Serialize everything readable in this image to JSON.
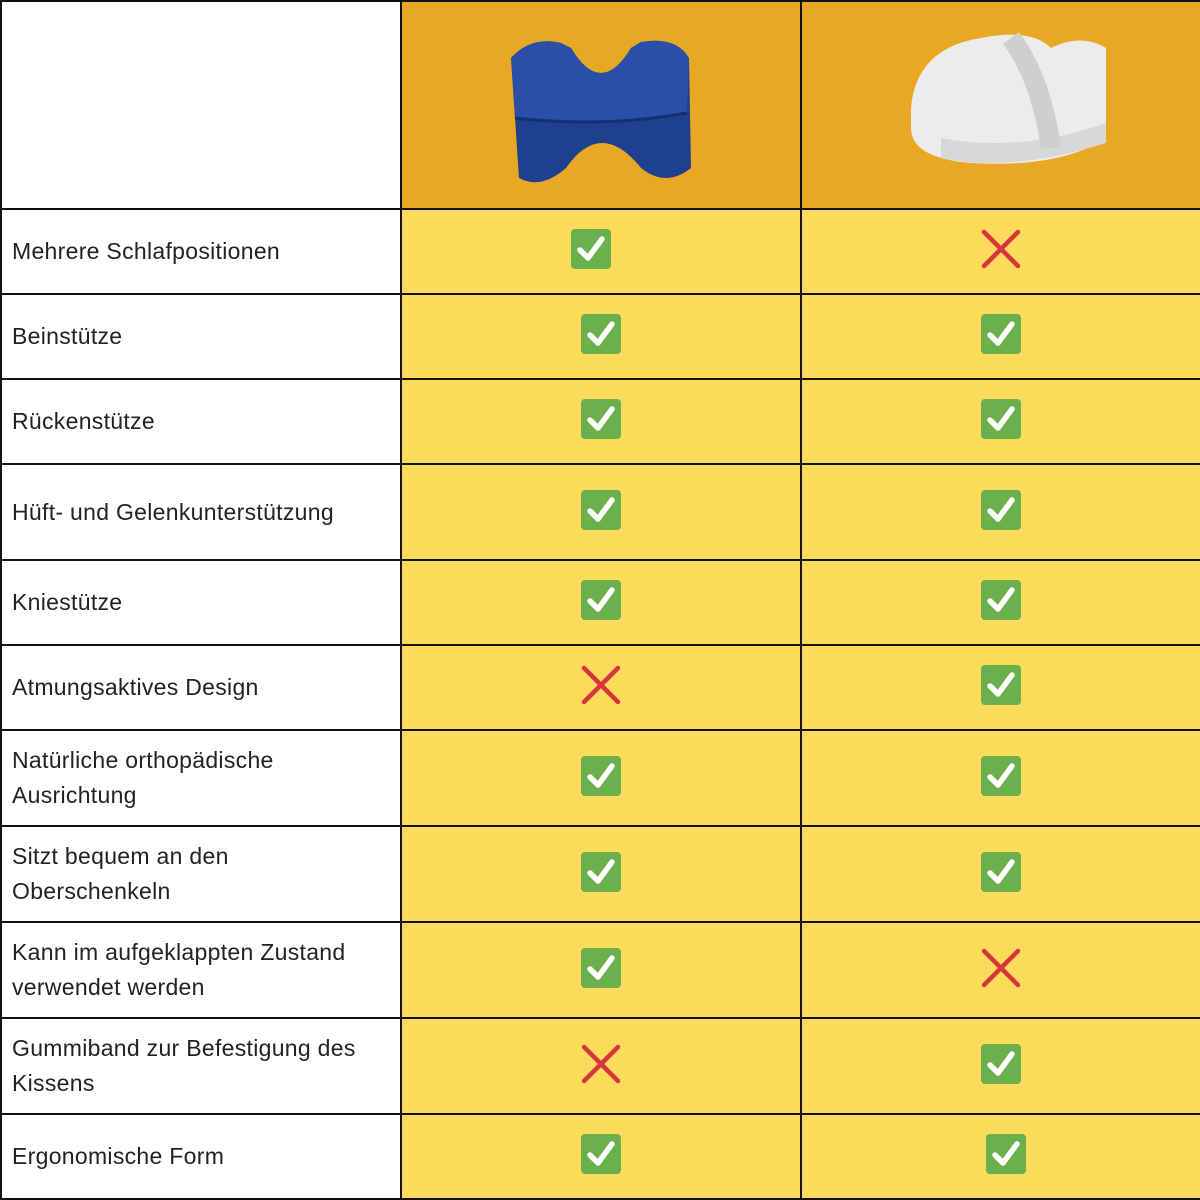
{
  "products": [
    {
      "name": "blue-knee-pillow",
      "color": "#1F3F8F"
    },
    {
      "name": "white-knee-pillow",
      "color": "#E8E8E8"
    }
  ],
  "colors": {
    "header": "#E9A823",
    "cell": "#FCDB5A",
    "check": "#6AB04C",
    "cross": "#D9343B"
  },
  "rows": [
    {
      "label": "Mehrere Schlafpositionen",
      "values": [
        "check",
        "cross"
      ]
    },
    {
      "label": "Beinstütze",
      "values": [
        "check",
        "check"
      ]
    },
    {
      "label": "Rückenstütze",
      "values": [
        "check",
        "check"
      ]
    },
    {
      "label": "Hüft- und Gelenkunterstützung",
      "values": [
        "check",
        "check"
      ]
    },
    {
      "label": "Kniestütze",
      "values": [
        "check",
        "check"
      ]
    },
    {
      "label": "Atmungsaktives Design",
      "values": [
        "cross",
        "check"
      ]
    },
    {
      "label": "Natürliche orthopädische Ausrichtung",
      "values": [
        "check",
        "check"
      ]
    },
    {
      "label": "Sitzt bequem an den Oberschenkeln",
      "values": [
        "check",
        "check"
      ]
    },
    {
      "label": "Kann im aufgeklappten Zustand verwendet werden",
      "values": [
        "check",
        "cross"
      ]
    },
    {
      "label": "Gummiband zur Befestigung des Kissens",
      "values": [
        "cross",
        "check"
      ]
    },
    {
      "label": "Ergonomische Form",
      "values": [
        "check",
        "check"
      ]
    }
  ]
}
